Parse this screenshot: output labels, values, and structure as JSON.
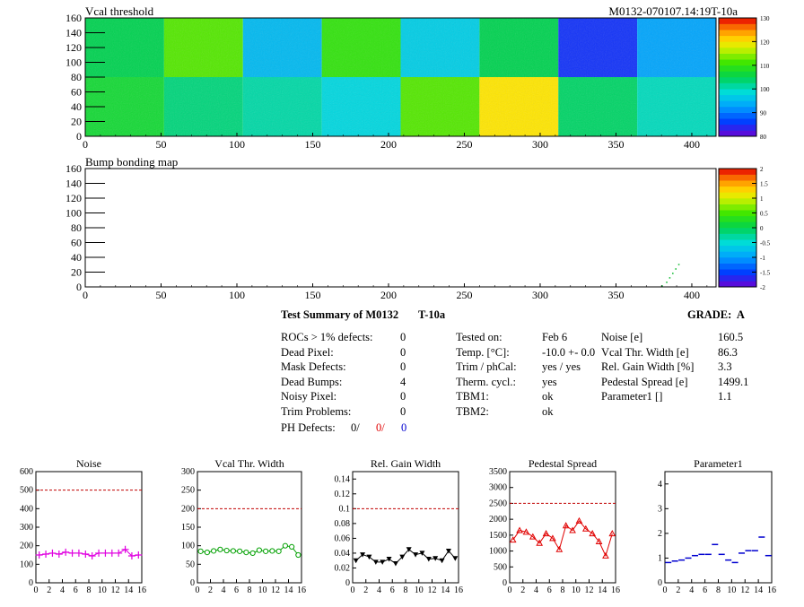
{
  "maps": [
    {
      "title": "Vcal threshold",
      "id_label": "M0132-070107.14:19T-10a",
      "x_ticks": [
        "0",
        "50",
        "100",
        "150",
        "200",
        "250",
        "300",
        "350",
        "400"
      ],
      "y_ticks": [
        "0",
        "20",
        "40",
        "60",
        "80",
        "100",
        "120",
        "140",
        "160"
      ],
      "z_ticks": [
        "80",
        "90",
        "100",
        "110",
        "120",
        "130"
      ]
    },
    {
      "title": "Bump bonding map",
      "x_ticks": [
        "0",
        "50",
        "100",
        "150",
        "200",
        "250",
        "300",
        "350",
        "400"
      ],
      "y_ticks": [
        "0",
        "20",
        "40",
        "60",
        "80",
        "100",
        "120",
        "140",
        "160"
      ],
      "z_ticks": [
        "-2",
        "-1.5",
        "-1",
        "-0.5",
        "0",
        "0.5",
        "1",
        "1.5",
        "2"
      ]
    }
  ],
  "summary": {
    "title": "Test Summary of M0132",
    "temp_tag": "T-10a",
    "grade": "GRADE:  A",
    "left": [
      {
        "label": "ROCs > 1% defects:",
        "value": "0"
      },
      {
        "label": "Dead Pixel:",
        "value": "0"
      },
      {
        "label": "Mask Defects:",
        "value": "0"
      },
      {
        "label": "Dead Bumps:",
        "value": "4"
      },
      {
        "label": "Noisy Pixel:",
        "value": "0"
      },
      {
        "label": "Trim Problems:",
        "value": "0"
      }
    ],
    "ph": {
      "label": "PH Defects:",
      "v1": "0/",
      "v2": "0/",
      "v3": "0"
    },
    "middle": [
      {
        "label": "Tested on:",
        "value": "Feb 6"
      },
      {
        "label": "Temp. [°C]:",
        "value": "-10.0 +- 0.0"
      },
      {
        "label": "Trim / phCal:",
        "value": "yes / yes"
      },
      {
        "label": "Therm. cycl.:",
        "value": "yes"
      },
      {
        "label": "TBM1:",
        "value": "ok"
      },
      {
        "label": "TBM2:",
        "value": "ok"
      }
    ],
    "right": [
      {
        "label": "Noise [e]",
        "value": "160.5"
      },
      {
        "label": "Vcal Thr. Width [e]",
        "value": "86.3"
      },
      {
        "label": "Rel. Gain Width [%]",
        "value": "3.3"
      },
      {
        "label": "Pedestal Spread [e]",
        "value": "1499.1"
      },
      {
        "label": "Parameter1 []",
        "value": "1.1"
      }
    ]
  },
  "chart_data": [
    {
      "type": "heatmap",
      "title": "Vcal threshold",
      "xlim": [
        0,
        416
      ],
      "ylim": [
        0,
        160
      ],
      "zlim": [
        80,
        130
      ],
      "module_grid": {
        "rocs_x": 8,
        "rocs_y": 2,
        "roc_cols": 52,
        "roc_rows": 80
      },
      "roc_levels_top": [
        105,
        112,
        95,
        110,
        97,
        105,
        85,
        93
      ],
      "roc_levels_bottom": [
        107,
        103,
        101,
        98,
        112,
        120,
        104,
        100
      ]
    },
    {
      "type": "scatter",
      "title": "Bump bonding map",
      "xlim": [
        0,
        416
      ],
      "ylim": [
        0,
        160
      ],
      "zlim": [
        -2,
        2
      ],
      "points": [
        [
          380,
          1
        ],
        [
          383,
          6
        ],
        [
          385,
          12
        ],
        [
          387,
          18
        ],
        [
          389,
          24
        ],
        [
          391,
          30
        ]
      ]
    },
    {
      "type": "line",
      "title": "Noise",
      "x": [
        0,
        1,
        2,
        3,
        4,
        5,
        6,
        7,
        8,
        9,
        10,
        11,
        12,
        13,
        14,
        15
      ],
      "y": [
        150,
        155,
        160,
        155,
        165,
        160,
        160,
        155,
        145,
        160,
        160,
        160,
        160,
        180,
        145,
        150
      ],
      "xlim": [
        0,
        16
      ],
      "ylim": [
        0,
        600
      ],
      "limit": 500,
      "x_ticks": [
        "0",
        "2",
        "4",
        "6",
        "8",
        "10",
        "12",
        "14",
        "16"
      ],
      "y_ticks": [
        "0",
        "100",
        "200",
        "300",
        "400",
        "500",
        "600"
      ],
      "color": "#e000e0",
      "marker": "cross"
    },
    {
      "type": "line",
      "title": "Vcal Thr. Width",
      "x": [
        0,
        1,
        2,
        3,
        4,
        5,
        6,
        7,
        8,
        9,
        10,
        11,
        12,
        13,
        14,
        15
      ],
      "y": [
        85,
        82,
        86,
        90,
        87,
        86,
        85,
        82,
        80,
        88,
        85,
        86,
        85,
        100,
        97,
        75
      ],
      "xlim": [
        0,
        16
      ],
      "ylim": [
        0,
        300
      ],
      "limit": 200,
      "x_ticks": [
        "0",
        "2",
        "4",
        "6",
        "8",
        "10",
        "12",
        "14",
        "16"
      ],
      "y_ticks": [
        "0",
        "50",
        "100",
        "150",
        "200",
        "250",
        "300"
      ],
      "color": "#00a000",
      "marker": "circle"
    },
    {
      "type": "line",
      "title": "Rel. Gain Width",
      "x": [
        0,
        1,
        2,
        3,
        4,
        5,
        6,
        7,
        8,
        9,
        10,
        11,
        12,
        13,
        14,
        15
      ],
      "y": [
        0.03,
        0.038,
        0.035,
        0.028,
        0.028,
        0.032,
        0.026,
        0.035,
        0.045,
        0.038,
        0.04,
        0.032,
        0.033,
        0.03,
        0.043,
        0.033
      ],
      "xlim": [
        0,
        16
      ],
      "ylim": [
        0,
        0.15
      ],
      "limit": 0.1,
      "x_ticks": [
        "0",
        "2",
        "4",
        "6",
        "8",
        "10",
        "12",
        "14",
        "16"
      ],
      "y_ticks": [
        "0",
        "0.02",
        "0.04",
        "0.06",
        "0.08",
        "0.1",
        "0.12",
        "0.14"
      ],
      "color": "#000000",
      "marker": "triangle-down"
    },
    {
      "type": "line",
      "title": "Pedestal Spread",
      "x": [
        0,
        1,
        2,
        3,
        4,
        5,
        6,
        7,
        8,
        9,
        10,
        11,
        12,
        13,
        14,
        15
      ],
      "y": [
        1350,
        1650,
        1600,
        1450,
        1250,
        1550,
        1400,
        1050,
        1800,
        1650,
        1950,
        1700,
        1550,
        1300,
        850,
        1550
      ],
      "xlim": [
        0,
        16
      ],
      "ylim": [
        0,
        3500
      ],
      "limit": 2500,
      "x_ticks": [
        "0",
        "2",
        "4",
        "6",
        "8",
        "10",
        "12",
        "14",
        "16"
      ],
      "y_ticks": [
        "0",
        "500",
        "1000",
        "1500",
        "2000",
        "2500",
        "3000",
        "3500"
      ],
      "color": "#e00000",
      "marker": "triangle-up"
    },
    {
      "type": "scatter",
      "title": "Parameter1",
      "x": [
        0,
        1,
        2,
        3,
        4,
        5,
        6,
        7,
        8,
        9,
        10,
        11,
        12,
        13,
        14,
        15
      ],
      "y": [
        0.82,
        0.88,
        0.92,
        1.0,
        1.1,
        1.15,
        1.15,
        1.55,
        1.15,
        0.92,
        0.82,
        1.2,
        1.3,
        1.3,
        1.85,
        1.1
      ],
      "xlim": [
        0,
        16
      ],
      "ylim": [
        0,
        4.5
      ],
      "x_ticks": [
        "0",
        "2",
        "4",
        "6",
        "8",
        "10",
        "12",
        "14",
        "16"
      ],
      "y_ticks": [
        "0",
        "1",
        "2",
        "3",
        "4"
      ],
      "color": "#0000d0",
      "marker": "hbar"
    }
  ]
}
